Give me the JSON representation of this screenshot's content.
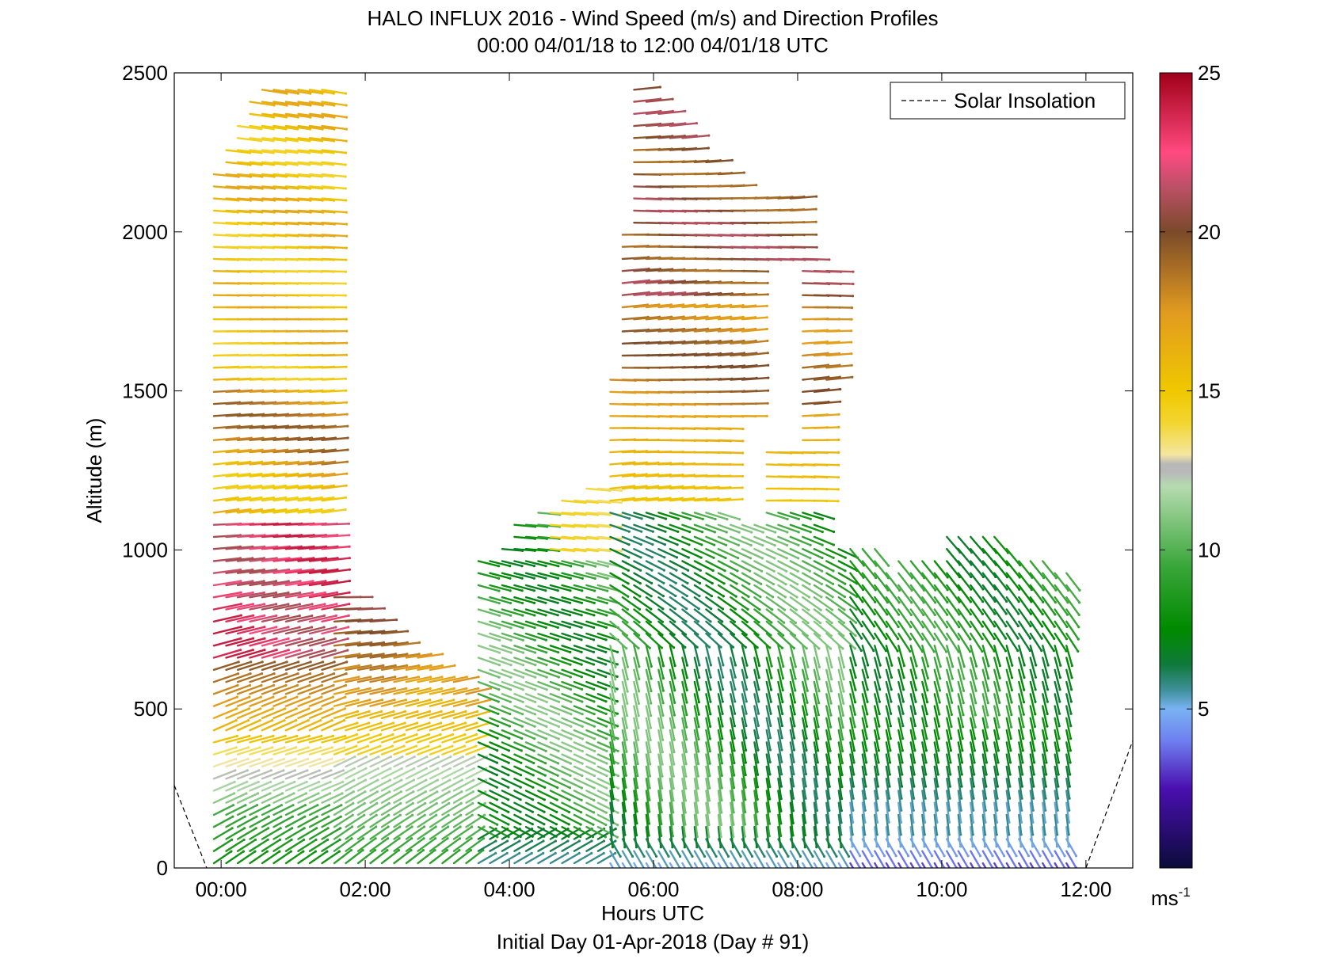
{
  "chart_data": {
    "type": "wind-barb-profile",
    "title": "HALO INFLUX 2016 - Wind Speed (m/s) and Direction Profiles",
    "subtitle": "00:00 04/01/18 to 12:00 04/01/18  UTC",
    "xlabel": "Hours UTC",
    "xlabel2": "Initial Day 01-Apr-2018 (Day # 91)",
    "ylabel": "Altitude (m)",
    "xlim": [
      -0.65,
      12.65
    ],
    "ylim": [
      0,
      2500
    ],
    "x_ticks": [
      {
        "value": 0,
        "label": "00:00"
      },
      {
        "value": 2,
        "label": "02:00"
      },
      {
        "value": 4,
        "label": "04:00"
      },
      {
        "value": 6,
        "label": "06:00"
      },
      {
        "value": 8,
        "label": "08:00"
      },
      {
        "value": 10,
        "label": "10:00"
      },
      {
        "value": 12,
        "label": "12:00"
      }
    ],
    "y_ticks": [
      {
        "value": 0,
        "label": "0"
      },
      {
        "value": 500,
        "label": "500"
      },
      {
        "value": 1000,
        "label": "1000"
      },
      {
        "value": 1500,
        "label": "1500"
      },
      {
        "value": 2000,
        "label": "2000"
      },
      {
        "value": 2500,
        "label": "2500"
      }
    ],
    "grid": false,
    "legend": {
      "position": "top-right",
      "entries": [
        {
          "label": "Solar Insolation",
          "style": "dashed",
          "color": "#000000"
        }
      ]
    },
    "solar_insolation": {
      "segments": [
        {
          "x": [
            -0.65,
            -0.2
          ],
          "y": [
            260,
            0
          ]
        },
        {
          "x": [
            12.0,
            12.65
          ],
          "y": [
            0,
            400
          ]
        }
      ]
    },
    "colorbar": {
      "min": 0,
      "max": 25,
      "ticks": [
        {
          "value": 5,
          "label": "5"
        },
        {
          "value": 10,
          "label": "10"
        },
        {
          "value": 15,
          "label": "15"
        },
        {
          "value": 20,
          "label": "20"
        },
        {
          "value": 25,
          "label": "25"
        }
      ],
      "unit": "ms",
      "unit_exp": "-1",
      "stops": [
        {
          "v": 0,
          "c": "#0b0b3a"
        },
        {
          "v": 2.5,
          "c": "#4a0fb0"
        },
        {
          "v": 4.0,
          "c": "#6f7ff0"
        },
        {
          "v": 5.0,
          "c": "#79b3f2"
        },
        {
          "v": 5.6,
          "c": "#3f8f9a"
        },
        {
          "v": 6.4,
          "c": "#0f7a3a"
        },
        {
          "v": 7.5,
          "c": "#008a00"
        },
        {
          "v": 9.5,
          "c": "#3aa63a"
        },
        {
          "v": 12.0,
          "c": "#b6dbb0"
        },
        {
          "v": 12.45,
          "c": "#b8b8b8"
        },
        {
          "v": 12.7,
          "c": "#b8b8b8"
        },
        {
          "v": 13.0,
          "c": "#f4e6a0"
        },
        {
          "v": 14.0,
          "c": "#f3d530"
        },
        {
          "v": 15.0,
          "c": "#f0c800"
        },
        {
          "v": 17.5,
          "c": "#e19a20"
        },
        {
          "v": 20.0,
          "c": "#7a4a2a"
        },
        {
          "v": 21.5,
          "c": "#c0506a"
        },
        {
          "v": 22.5,
          "c": "#ff4a80"
        },
        {
          "v": 25.0,
          "c": "#a00018"
        }
      ]
    },
    "profile_times": [
      -0.1,
      0.07,
      0.23,
      0.4,
      0.57,
      0.73,
      0.9,
      1.07,
      1.23,
      1.4,
      1.57,
      1.73,
      1.9,
      2.07,
      2.23,
      2.4,
      2.57,
      2.73,
      2.9,
      3.07,
      3.23,
      3.4,
      3.57,
      3.73,
      3.9,
      4.07,
      4.23,
      4.4,
      4.57,
      4.73,
      4.9,
      5.07,
      5.23,
      5.4,
      5.57,
      5.73,
      5.9,
      6.07,
      6.23,
      6.4,
      6.57,
      6.73,
      6.9,
      7.07,
      7.23,
      7.4,
      7.57,
      7.73,
      7.9,
      8.07,
      8.23,
      8.4,
      8.57,
      8.73,
      8.9,
      9.07,
      9.23,
      9.4,
      9.57,
      9.73,
      9.9,
      10.07,
      10.23,
      10.4,
      10.57,
      10.73,
      10.9,
      11.07,
      11.23,
      11.4,
      11.57,
      11.73
    ],
    "altitude_step": 38
  }
}
